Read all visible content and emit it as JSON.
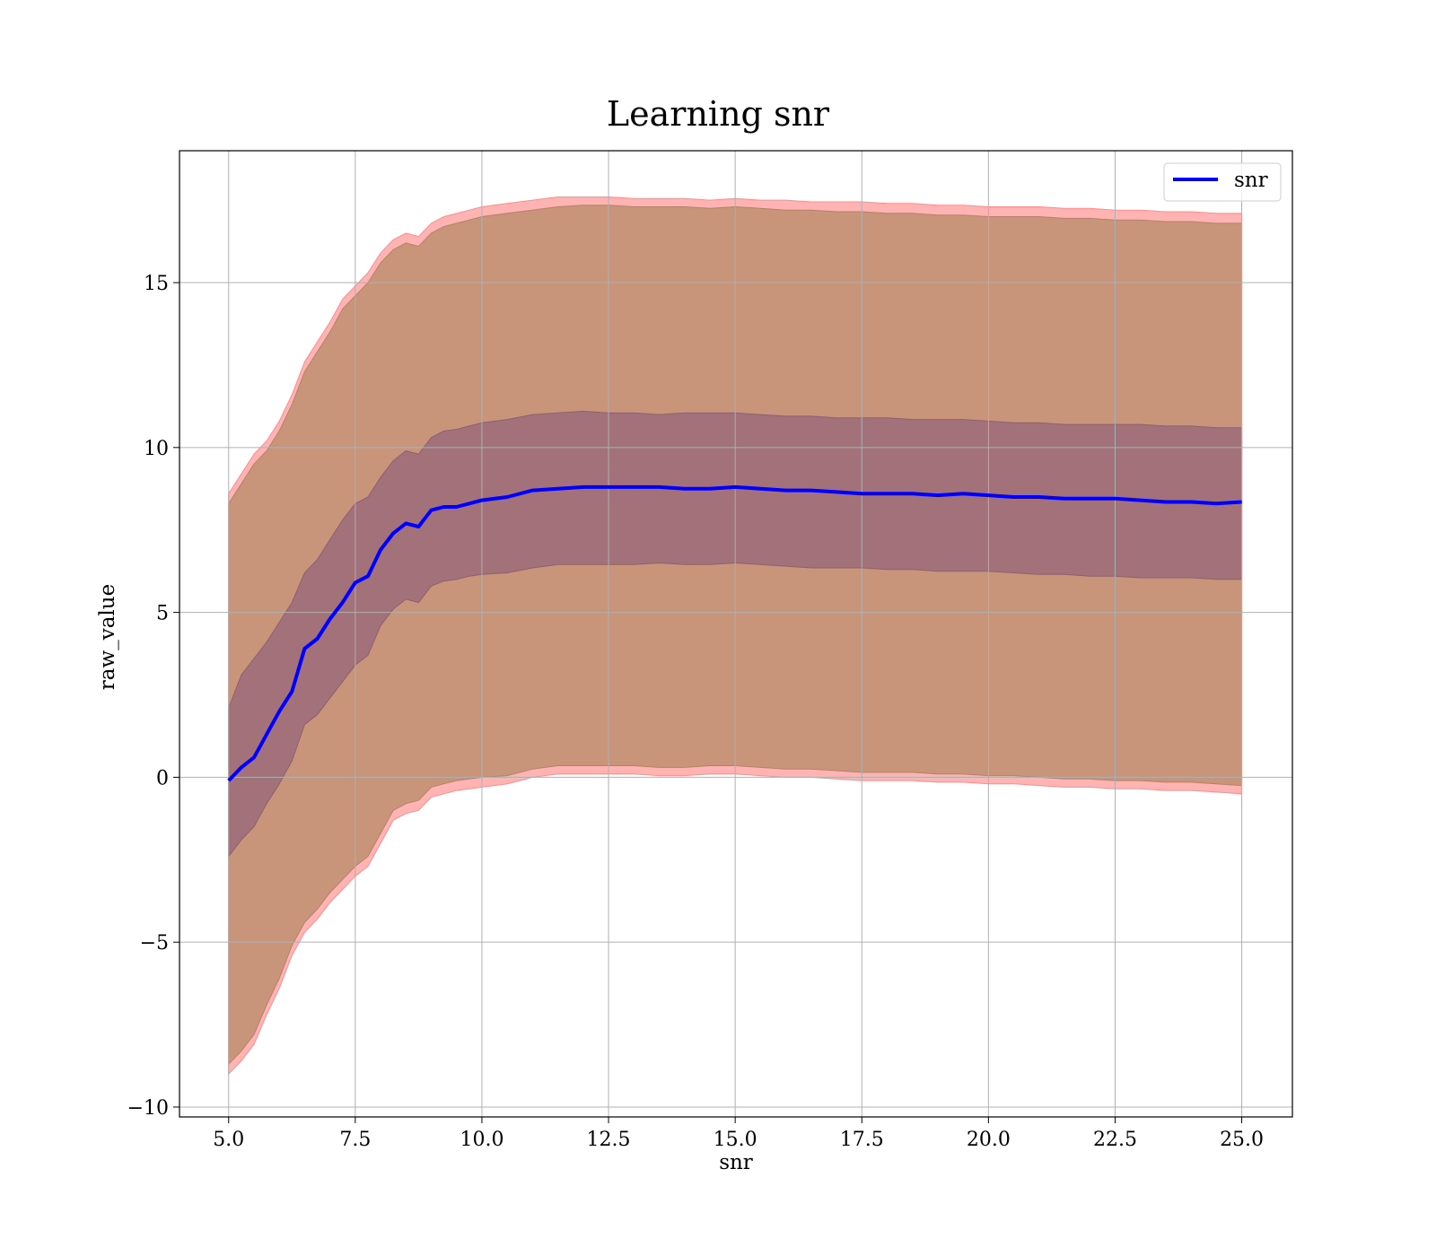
{
  "chart_data": {
    "type": "line",
    "title": "Learning snr",
    "xlabel": "snr",
    "ylabel": "raw_value",
    "xlim": [
      4.03,
      26.0
    ],
    "ylim": [
      -10.3,
      19.0
    ],
    "grid": true,
    "legend_position": "top-right",
    "x_ticks": [
      5.0,
      7.5,
      10.0,
      12.5,
      15.0,
      17.5,
      20.0,
      22.5,
      25.0
    ],
    "x_tick_labels": [
      "5.0",
      "7.5",
      "10.0",
      "12.5",
      "15.0",
      "17.5",
      "20.0",
      "22.5",
      "25.0"
    ],
    "y_ticks": [
      -10,
      -5,
      0,
      5,
      10,
      15
    ],
    "y_tick_labels": [
      "−10",
      "−5",
      "0",
      "5",
      "10",
      "15"
    ],
    "colors": {
      "mean_line": "#0000ff",
      "outer_band": "#ff0000",
      "inner_band": "#000080",
      "grid": "#b0b0b0"
    },
    "x": [
      5.0,
      5.25,
      5.5,
      5.75,
      6.0,
      6.25,
      6.5,
      6.75,
      7.0,
      7.25,
      7.5,
      7.75,
      8.0,
      8.25,
      8.5,
      8.75,
      9.0,
      9.25,
      9.5,
      9.75,
      10.0,
      10.5,
      11.0,
      11.5,
      12.0,
      12.5,
      13.0,
      13.5,
      14.0,
      14.5,
      15.0,
      15.5,
      16.0,
      16.5,
      17.0,
      17.5,
      18.0,
      18.5,
      19.0,
      19.5,
      20.0,
      20.5,
      21.0,
      21.5,
      22.0,
      22.5,
      23.0,
      23.5,
      24.0,
      24.5,
      25.0
    ],
    "series": [
      {
        "name": "snr",
        "values": [
          -0.1,
          0.3,
          0.6,
          1.3,
          2.0,
          2.6,
          3.9,
          4.2,
          4.8,
          5.3,
          5.9,
          6.1,
          6.9,
          7.4,
          7.7,
          7.6,
          8.1,
          8.2,
          8.2,
          8.3,
          8.4,
          8.5,
          8.7,
          8.75,
          8.8,
          8.8,
          8.8,
          8.8,
          8.75,
          8.75,
          8.8,
          8.75,
          8.7,
          8.7,
          8.65,
          8.6,
          8.6,
          8.6,
          8.55,
          8.6,
          8.55,
          8.5,
          8.5,
          8.45,
          8.45,
          8.45,
          8.4,
          8.35,
          8.35,
          8.3,
          8.35
        ]
      }
    ],
    "bands": [
      {
        "role": "outer",
        "upper": [
          8.6,
          9.2,
          9.8,
          10.2,
          10.8,
          11.6,
          12.6,
          13.2,
          13.8,
          14.5,
          14.9,
          15.3,
          15.9,
          16.3,
          16.5,
          16.4,
          16.8,
          17.0,
          17.1,
          17.2,
          17.3,
          17.4,
          17.5,
          17.6,
          17.6,
          17.6,
          17.55,
          17.55,
          17.55,
          17.5,
          17.55,
          17.5,
          17.5,
          17.45,
          17.45,
          17.45,
          17.4,
          17.4,
          17.35,
          17.35,
          17.3,
          17.3,
          17.3,
          17.25,
          17.25,
          17.2,
          17.2,
          17.15,
          17.15,
          17.1,
          17.1
        ],
        "lower": [
          -9.0,
          -8.6,
          -8.1,
          -7.2,
          -6.4,
          -5.4,
          -4.7,
          -4.3,
          -3.8,
          -3.4,
          -3.0,
          -2.7,
          -2.0,
          -1.3,
          -1.1,
          -1.0,
          -0.6,
          -0.5,
          -0.4,
          -0.35,
          -0.3,
          -0.2,
          0.0,
          0.1,
          0.1,
          0.1,
          0.1,
          0.05,
          0.05,
          0.1,
          0.1,
          0.05,
          0.0,
          0.0,
          -0.05,
          -0.1,
          -0.1,
          -0.1,
          -0.15,
          -0.15,
          -0.2,
          -0.2,
          -0.25,
          -0.3,
          -0.3,
          -0.35,
          -0.35,
          -0.4,
          -0.4,
          -0.45,
          -0.5
        ]
      },
      {
        "role": "outer-inner",
        "upper": [
          8.3,
          8.9,
          9.5,
          9.9,
          10.5,
          11.3,
          12.3,
          12.9,
          13.5,
          14.2,
          14.6,
          15.0,
          15.6,
          16.0,
          16.2,
          16.1,
          16.5,
          16.7,
          16.8,
          16.9,
          17.0,
          17.1,
          17.2,
          17.3,
          17.35,
          17.35,
          17.3,
          17.3,
          17.3,
          17.25,
          17.3,
          17.25,
          17.2,
          17.2,
          17.15,
          17.15,
          17.1,
          17.1,
          17.05,
          17.05,
          17.0,
          17.0,
          17.0,
          16.95,
          16.95,
          16.9,
          16.9,
          16.85,
          16.85,
          16.8,
          16.8
        ],
        "lower": [
          -8.7,
          -8.3,
          -7.8,
          -6.9,
          -6.1,
          -5.1,
          -4.4,
          -4.0,
          -3.5,
          -3.1,
          -2.7,
          -2.4,
          -1.7,
          -1.0,
          -0.8,
          -0.7,
          -0.3,
          -0.2,
          -0.1,
          -0.05,
          0.0,
          0.05,
          0.25,
          0.35,
          0.35,
          0.35,
          0.35,
          0.3,
          0.3,
          0.35,
          0.35,
          0.3,
          0.25,
          0.25,
          0.2,
          0.15,
          0.15,
          0.15,
          0.1,
          0.1,
          0.05,
          0.05,
          0.0,
          -0.05,
          -0.05,
          -0.1,
          -0.1,
          -0.15,
          -0.15,
          -0.2,
          -0.25
        ]
      },
      {
        "role": "inner",
        "upper": [
          2.1,
          3.1,
          3.6,
          4.1,
          4.7,
          5.3,
          6.2,
          6.6,
          7.2,
          7.8,
          8.3,
          8.5,
          9.1,
          9.6,
          9.9,
          9.8,
          10.3,
          10.5,
          10.55,
          10.65,
          10.75,
          10.85,
          11.0,
          11.05,
          11.1,
          11.05,
          11.05,
          11.0,
          11.05,
          11.05,
          11.05,
          11.0,
          10.95,
          10.95,
          10.9,
          10.9,
          10.9,
          10.85,
          10.85,
          10.85,
          10.8,
          10.75,
          10.75,
          10.7,
          10.7,
          10.7,
          10.7,
          10.65,
          10.65,
          10.6,
          10.6
        ],
        "lower": [
          -2.4,
          -1.9,
          -1.5,
          -0.8,
          -0.2,
          0.5,
          1.6,
          1.9,
          2.4,
          2.9,
          3.4,
          3.7,
          4.6,
          5.1,
          5.4,
          5.3,
          5.8,
          5.95,
          6.0,
          6.1,
          6.15,
          6.2,
          6.35,
          6.45,
          6.45,
          6.45,
          6.45,
          6.5,
          6.45,
          6.45,
          6.5,
          6.45,
          6.4,
          6.35,
          6.35,
          6.35,
          6.3,
          6.3,
          6.25,
          6.25,
          6.25,
          6.2,
          6.15,
          6.15,
          6.1,
          6.1,
          6.05,
          6.05,
          6.05,
          6.0,
          6.0
        ]
      }
    ]
  }
}
